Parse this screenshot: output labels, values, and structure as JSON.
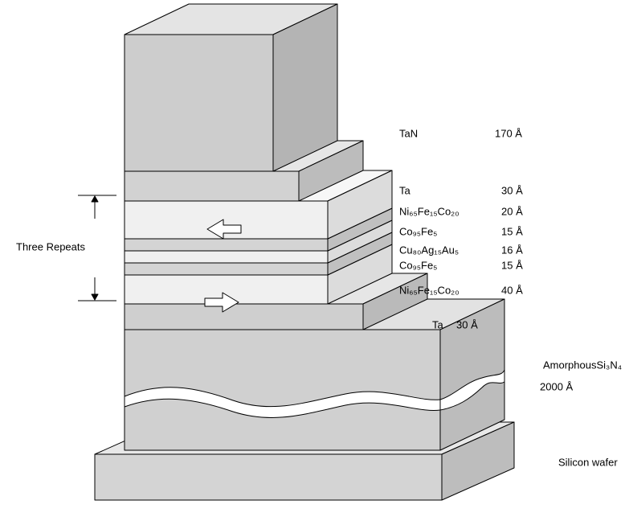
{
  "layers": [
    {
      "material": "TaN",
      "thickness": "170 Å"
    },
    {
      "material": "Ta",
      "thickness": "30 Å"
    },
    {
      "material": "Ni₆₅Fe₁₅Co₂₀",
      "thickness": "20 Å"
    },
    {
      "material": "Co₉₅Fe₅",
      "thickness": "15 Å"
    },
    {
      "material": "Cu₈₀Ag₁₅Au₅",
      "thickness": "16 Å"
    },
    {
      "material": "Co₉₅Fe₅",
      "thickness": "15 Å"
    },
    {
      "material": "Ni₆₅Fe₁₅Co₂₀",
      "thickness": "40 Å"
    },
    {
      "material": "Ta",
      "thickness": "30 Å"
    }
  ],
  "repeat_label": "Three Repeats",
  "substrate": {
    "material": "AmorphousSi₃N₄",
    "thickness": "2000 Å"
  },
  "wafer": "Silicon wafer"
}
